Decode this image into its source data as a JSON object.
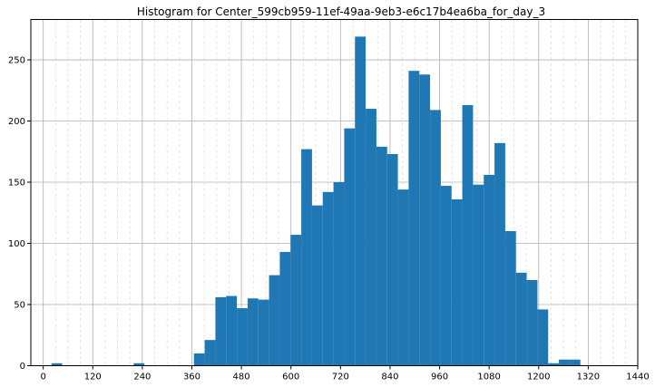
{
  "chart_data": {
    "type": "bar",
    "title": "Histogram for Center_599cb959-11ef-49aa-9eb3-e6c17b4ea6ba_for_day_3",
    "xlabel": "",
    "ylabel": "",
    "xlim": [
      -30,
      1440
    ],
    "ylim": [
      0,
      283
    ],
    "x_ticks": [
      0,
      120,
      240,
      360,
      480,
      600,
      720,
      840,
      960,
      1080,
      1200,
      1320,
      1440
    ],
    "y_ticks": [
      0,
      50,
      100,
      150,
      200,
      250
    ],
    "x_minor_step": 30,
    "grid": true,
    "bar_color": "#1f77b4",
    "bins": [
      {
        "x0": 20,
        "x1": 46,
        "count": 2
      },
      {
        "x0": 219,
        "x1": 245,
        "count": 2
      },
      {
        "x0": 365,
        "x1": 391,
        "count": 10
      },
      {
        "x0": 391,
        "x1": 417,
        "count": 21
      },
      {
        "x0": 417,
        "x1": 443,
        "count": 56
      },
      {
        "x0": 443,
        "x1": 469,
        "count": 57
      },
      {
        "x0": 469,
        "x1": 495,
        "count": 47
      },
      {
        "x0": 495,
        "x1": 521,
        "count": 55
      },
      {
        "x0": 521,
        "x1": 547,
        "count": 54
      },
      {
        "x0": 547,
        "x1": 573,
        "count": 74
      },
      {
        "x0": 573,
        "x1": 599,
        "count": 93
      },
      {
        "x0": 599,
        "x1": 625,
        "count": 107
      },
      {
        "x0": 625,
        "x1": 651,
        "count": 177
      },
      {
        "x0": 651,
        "x1": 677,
        "count": 131
      },
      {
        "x0": 677,
        "x1": 703,
        "count": 142
      },
      {
        "x0": 703,
        "x1": 729,
        "count": 150
      },
      {
        "x0": 729,
        "x1": 755,
        "count": 194
      },
      {
        "x0": 755,
        "x1": 781,
        "count": 269
      },
      {
        "x0": 781,
        "x1": 807,
        "count": 210
      },
      {
        "x0": 807,
        "x1": 833,
        "count": 179
      },
      {
        "x0": 833,
        "x1": 859,
        "count": 173
      },
      {
        "x0": 859,
        "x1": 885,
        "count": 144
      },
      {
        "x0": 885,
        "x1": 911,
        "count": 241
      },
      {
        "x0": 911,
        "x1": 937,
        "count": 238
      },
      {
        "x0": 937,
        "x1": 963,
        "count": 209
      },
      {
        "x0": 963,
        "x1": 989,
        "count": 147
      },
      {
        "x0": 989,
        "x1": 1015,
        "count": 136
      },
      {
        "x0": 1015,
        "x1": 1041,
        "count": 213
      },
      {
        "x0": 1041,
        "x1": 1067,
        "count": 148
      },
      {
        "x0": 1067,
        "x1": 1093,
        "count": 156
      },
      {
        "x0": 1093,
        "x1": 1119,
        "count": 182
      },
      {
        "x0": 1119,
        "x1": 1145,
        "count": 110
      },
      {
        "x0": 1145,
        "x1": 1171,
        "count": 76
      },
      {
        "x0": 1171,
        "x1": 1197,
        "count": 70
      },
      {
        "x0": 1197,
        "x1": 1223,
        "count": 46
      },
      {
        "x0": 1223,
        "x1": 1249,
        "count": 2
      },
      {
        "x0": 1249,
        "x1": 1275,
        "count": 5
      },
      {
        "x0": 1275,
        "x1": 1301,
        "count": 5
      }
    ]
  }
}
